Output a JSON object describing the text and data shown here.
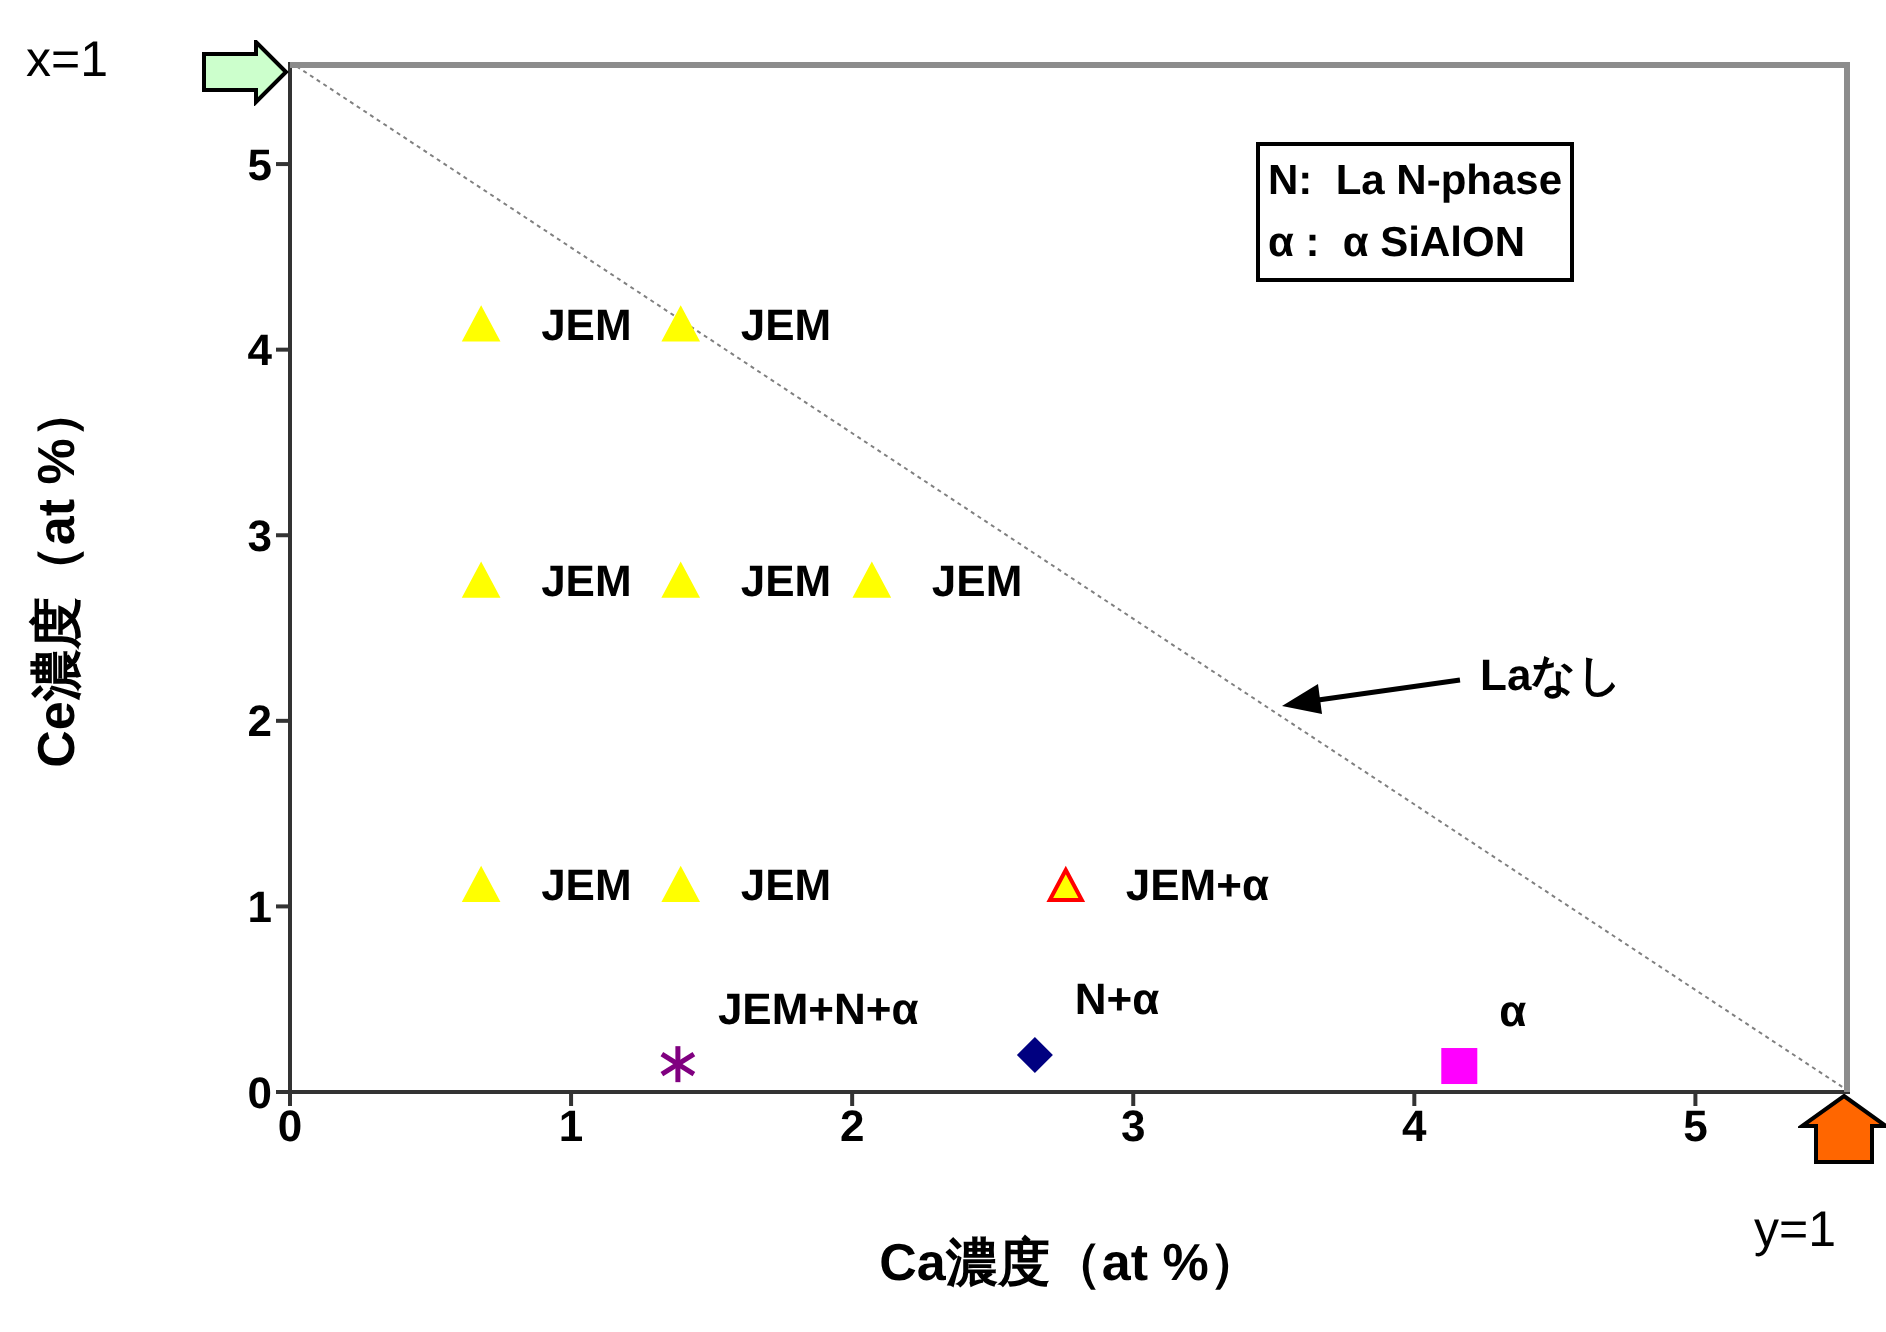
{
  "chart_data": {
    "type": "scatter",
    "xlabel": "Ca濃度（at %）",
    "ylabel": "Ce濃度（at %）",
    "xlim": [
      0,
      5.55
    ],
    "ylim": [
      0,
      5.55
    ],
    "xticks": [
      0,
      1,
      2,
      3,
      4,
      5
    ],
    "yticks": [
      0,
      1,
      2,
      3,
      4,
      5
    ],
    "grid": false,
    "legend": false,
    "series": [
      {
        "type": "line",
        "color": "#808080",
        "line_style": "dotted",
        "marker": "none",
        "x": [
          0,
          5.55
        ],
        "values": [
          5.55,
          0
        ]
      },
      {
        "color": "#ffff00",
        "marker": "triangle",
        "x": [
          0.68,
          1.39,
          0.68,
          1.39,
          2.07,
          0.68,
          1.39
        ],
        "values": [
          4.13,
          4.13,
          2.75,
          2.75,
          2.75,
          1.11,
          1.11
        ]
      },
      {
        "color": "#ff0000",
        "marker": "triangle",
        "x": [
          2.76
        ],
        "values": [
          1.11
        ]
      },
      {
        "color": "#800080",
        "marker": "cross",
        "x": [
          1.38
        ],
        "values": [
          0.15
        ]
      },
      {
        "color": "#000080",
        "marker": "diamond",
        "x": [
          2.65
        ],
        "values": [
          0.2
        ]
      },
      {
        "color": "#ff00ff",
        "marker": "square",
        "x": [
          4.16
        ],
        "values": [
          0.14
        ]
      }
    ],
    "annotations": [
      "x=1",
      "y=1",
      "N:  La N-phase",
      "α :  α SiAlON",
      "Laなし",
      {
        "text": "JEM",
        "x": 0.68,
        "y": 4.13
      },
      {
        "text": "JEM",
        "x": 1.39,
        "y": 4.13
      },
      {
        "text": "JEM",
        "x": 0.68,
        "y": 2.75
      },
      {
        "text": "JEM",
        "x": 1.39,
        "y": 2.75
      },
      {
        "text": "JEM",
        "x": 2.07,
        "y": 2.75
      },
      {
        "text": "JEM",
        "x": 0.68,
        "y": 1.11
      },
      {
        "text": "JEM",
        "x": 1.39,
        "y": 1.11
      },
      {
        "text": "JEM+α",
        "x": 2.76,
        "y": 1.11
      },
      {
        "text": "JEM+N+α",
        "x": 1.38,
        "y": 0.15
      },
      {
        "text": "N+α",
        "x": 2.65,
        "y": 0.2
      },
      {
        "text": "α",
        "x": 4.16,
        "y": 0.14
      }
    ]
  }
}
